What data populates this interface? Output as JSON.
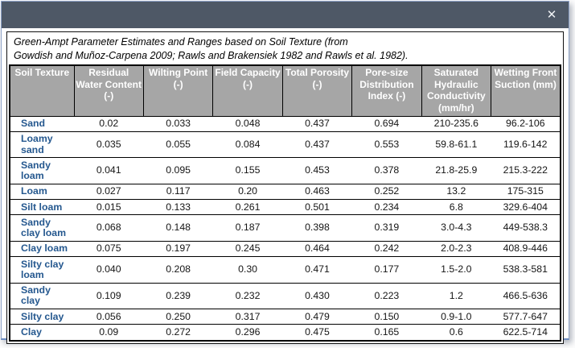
{
  "window": {
    "close_icon_glyph": "✕"
  },
  "caption": {
    "line1": "Green-Ampt Parameter Estimates and Ranges based on Soil Texture (from",
    "line2": "Gowdish and Muñoz-Carpena 2009; Rawls and Brakensiek 1982 and Rawls et al. 1982)."
  },
  "table": {
    "columns": [
      "Soil Texture",
      "Residual Water Content (-)",
      "Wilting Point (-)",
      "Field Capacity (-)",
      "Total Porosity (-)",
      "Pore-size Distribution Index (-)",
      "Saturated Hydraulic Conductivity (mm/hr)",
      "Wetting Front Suction (mm)"
    ],
    "rows": [
      {
        "texture": "Sand",
        "values": [
          "0.02",
          "0.033",
          "0.048",
          "0.437",
          "0.694",
          "210-235.6",
          "96.2-106"
        ]
      },
      {
        "texture": "Loamy sand",
        "values": [
          "0.035",
          "0.055",
          "0.084",
          "0.437",
          "0.553",
          "59.8-61.1",
          "119.6-142"
        ]
      },
      {
        "texture": "Sandy loam",
        "values": [
          "0.041",
          "0.095",
          "0.155",
          "0.453",
          "0.378",
          "21.8-25.9",
          "215.3-222"
        ]
      },
      {
        "texture": "Loam",
        "values": [
          "0.027",
          "0.117",
          "0.20",
          "0.463",
          "0.252",
          "13.2",
          "175-315"
        ]
      },
      {
        "texture": "Silt loam",
        "values": [
          "0.015",
          "0.133",
          "0.261",
          "0.501",
          "0.234",
          "6.8",
          "329.6-404"
        ]
      },
      {
        "texture": "Sandy clay loam",
        "values": [
          "0.068",
          "0.148",
          "0.187",
          "0.398",
          "0.319",
          "3.0-4.3",
          "449-538.3"
        ]
      },
      {
        "texture": "Clay loam",
        "values": [
          "0.075",
          "0.197",
          "0.245",
          "0.464",
          "0.242",
          "2.0-2.3",
          "408.9-446"
        ]
      },
      {
        "texture": "Silty clay loam",
        "values": [
          "0.040",
          "0.208",
          "0.30",
          "0.471",
          "0.177",
          "1.5-2.0",
          "538.3-581"
        ]
      },
      {
        "texture": "Sandy clay",
        "values": [
          "0.109",
          "0.239",
          "0.232",
          "0.430",
          "0.223",
          "1.2",
          "466.5-636"
        ]
      },
      {
        "texture": "Silty clay",
        "values": [
          "0.056",
          "0.250",
          "0.317",
          "0.479",
          "0.150",
          "0.9-1.0",
          "577.7-647"
        ]
      },
      {
        "texture": "Clay",
        "values": [
          "0.09",
          "0.272",
          "0.296",
          "0.475",
          "0.165",
          "0.6",
          "622.5-714"
        ]
      }
    ]
  },
  "colors": {
    "titlebar": "#4e5866",
    "header_bg": "#a6a6a6",
    "header_text": "#ffffff",
    "texture_text": "#25588f",
    "table_border": "#000000"
  }
}
